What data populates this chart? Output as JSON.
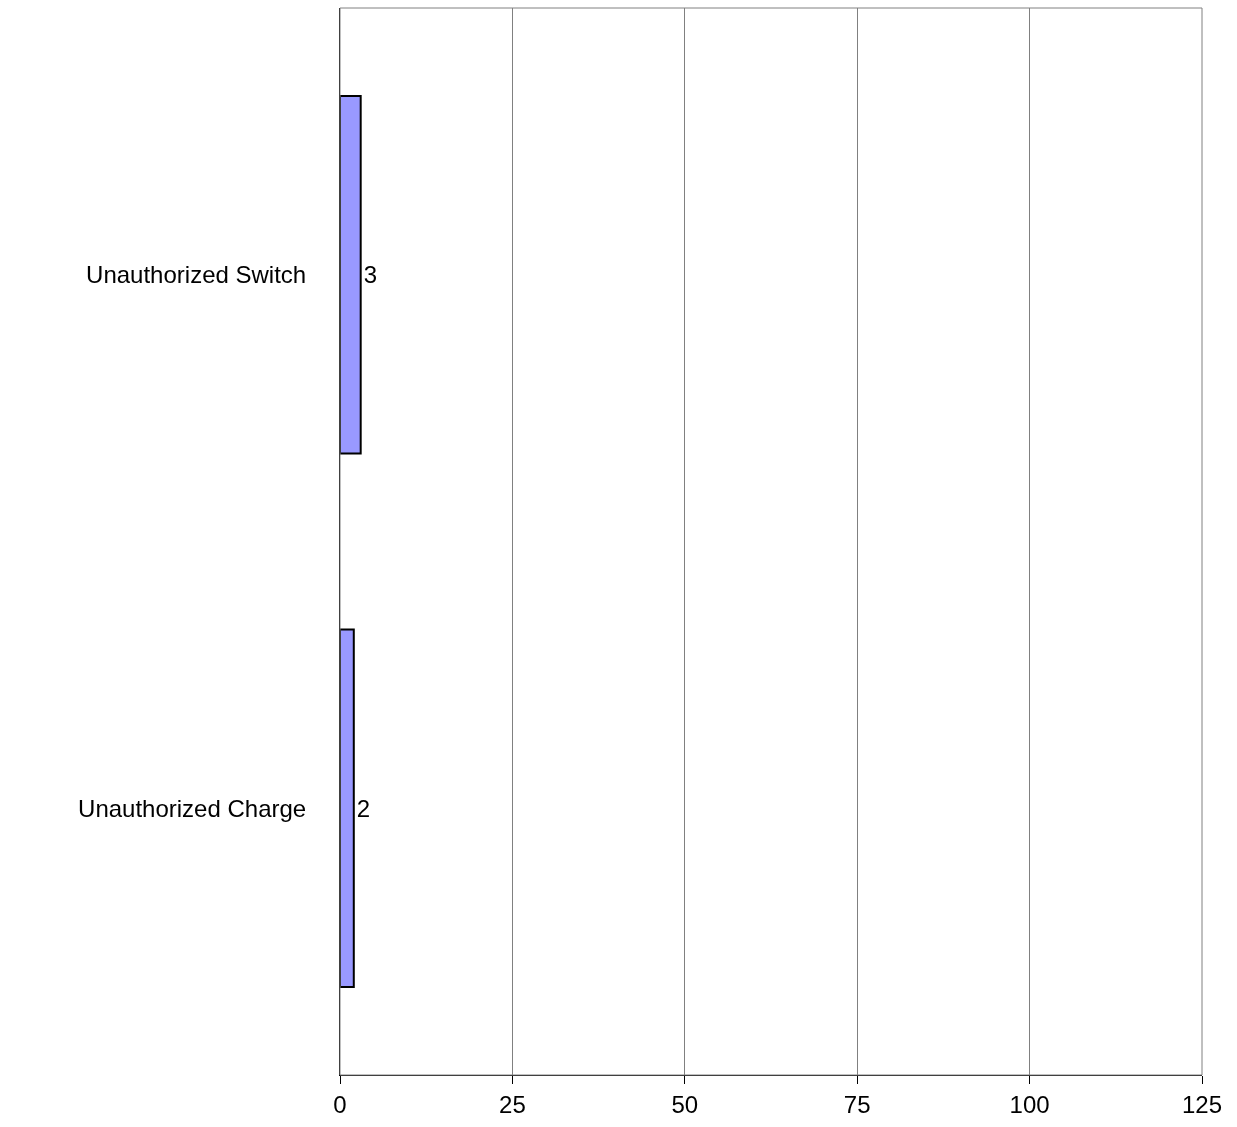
{
  "chart_data": {
    "type": "bar",
    "orientation": "horizontal",
    "categories": [
      "Unauthorized Switch",
      "Unauthorized Charge"
    ],
    "values": [
      3,
      2
    ],
    "color": "#9999ff",
    "xlim": [
      0,
      125
    ],
    "xticks": [
      0,
      25,
      50,
      75,
      100,
      125
    ],
    "grid": "x",
    "data_labels": true
  }
}
